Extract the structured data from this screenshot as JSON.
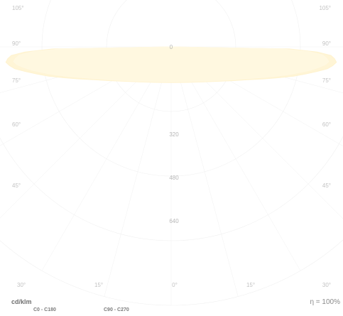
{
  "chart_data": {
    "type": "polar",
    "angle_labels_left": [
      "105°",
      "90°",
      "75°",
      "60°",
      "45°"
    ],
    "angle_labels_right": [
      "105°",
      "90°",
      "75°",
      "60°",
      "45°"
    ],
    "bottom_angle_labels": [
      "30°",
      "15°",
      "0°",
      "15°",
      "30°"
    ],
    "radial_values": [
      320,
      480,
      640
    ],
    "radial_top_label": "0",
    "unit": "cd/klm",
    "efficiency": "η = 100%",
    "legend": [
      "C0 - C180",
      "C90 - C270"
    ],
    "series": [
      {
        "name": "C0 - C180",
        "color": "#fff3cf",
        "gamma": [
          90,
          95,
          100,
          105,
          110,
          115,
          120,
          125,
          130,
          135,
          140,
          145,
          150,
          155,
          160,
          165,
          170,
          175,
          180
        ],
        "values": [
          0,
          140,
          175,
          195,
          205,
          215,
          220,
          225,
          225,
          225,
          225,
          222,
          218,
          214,
          212,
          210,
          210,
          210,
          210
        ]
      },
      {
        "name": "C90 - C270",
        "color": "#fff8e2",
        "gamma": [
          90,
          95,
          100,
          105,
          110,
          115,
          120,
          125,
          130,
          135,
          140,
          145,
          150,
          155,
          160,
          165,
          170,
          175,
          180
        ],
        "values": [
          0,
          130,
          165,
          185,
          195,
          205,
          210,
          212,
          214,
          214,
          214,
          212,
          210,
          208,
          207,
          206,
          206,
          206,
          206
        ]
      }
    ]
  },
  "colors": {
    "grid": "#f1f1f1",
    "label": "#c3c3c3"
  }
}
